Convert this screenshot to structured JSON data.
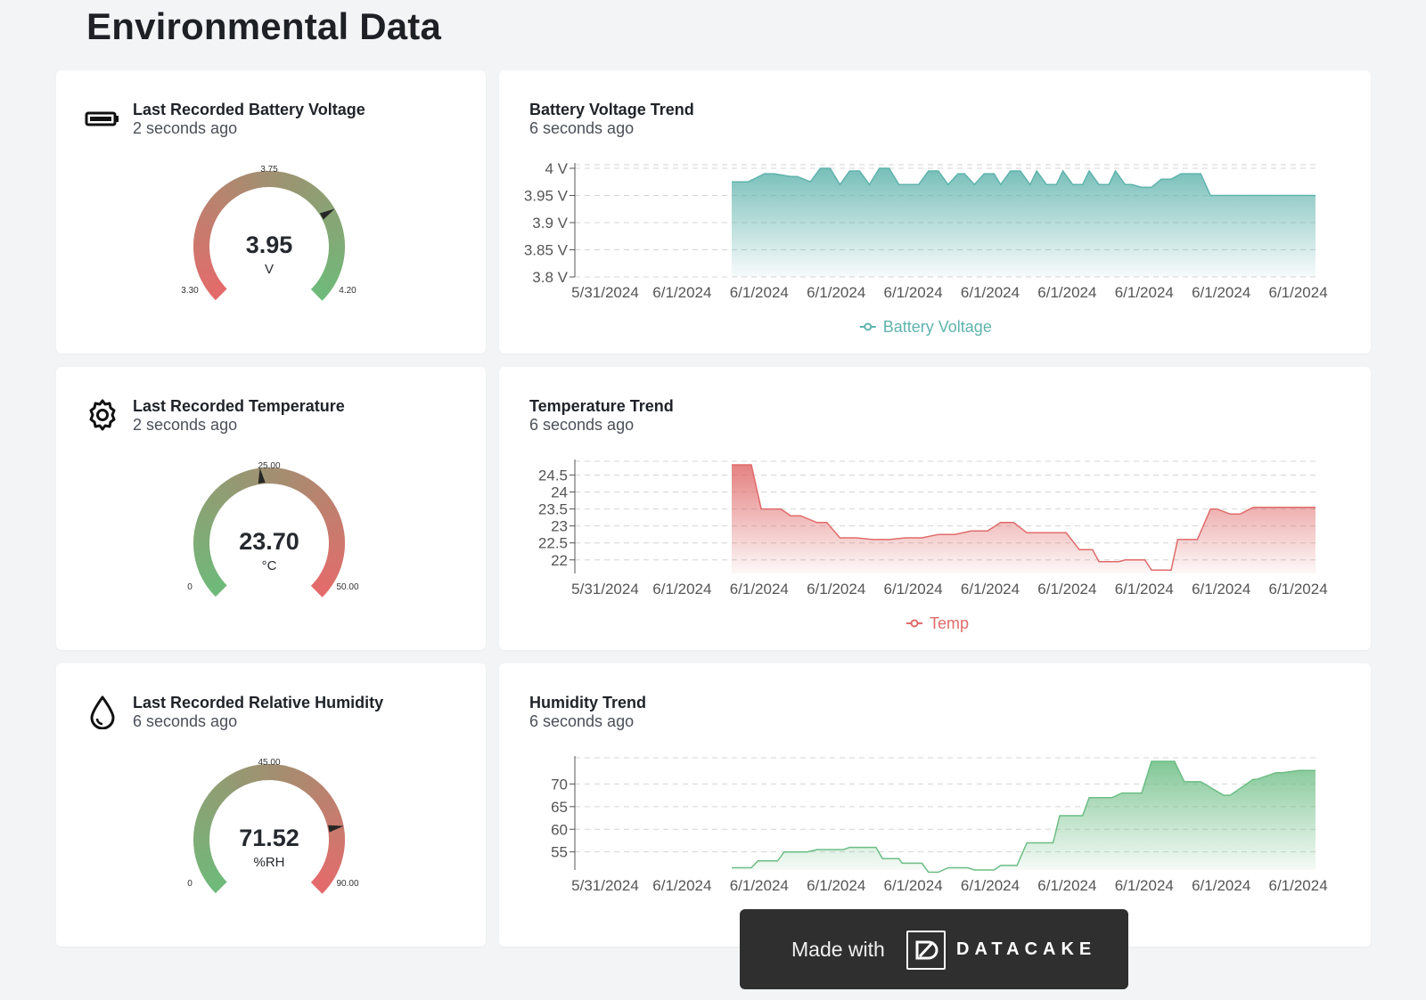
{
  "page": {
    "title": "Environmental Data"
  },
  "kpis": [
    {
      "title": "Last Recorded Battery Voltage",
      "updated": "2 seconds ago",
      "icon": "battery-icon",
      "value": "3.95",
      "value_num": 3.95,
      "unit": "V",
      "min": "3.30",
      "mid": "3.75",
      "max": "4.20",
      "min_num": 3.3,
      "max_num": 4.2,
      "direction": "red-to-green"
    },
    {
      "title": "Last Recorded Temperature",
      "updated": "2 seconds ago",
      "icon": "gear-icon",
      "value": "23.70",
      "value_num": 23.7,
      "unit": "°C",
      "min": "0",
      "mid": "25.00",
      "max": "50.00",
      "min_num": 0,
      "max_num": 50,
      "direction": "green-to-red"
    },
    {
      "title": "Last Recorded Relative Humidity",
      "updated": "6 seconds ago",
      "icon": "water-drop-icon",
      "value": "71.52",
      "value_num": 71.52,
      "unit": "%RH",
      "min": "0",
      "mid": "45.00",
      "max": "90.00",
      "min_num": 0,
      "max_num": 90,
      "direction": "green-to-red"
    }
  ],
  "trends": [
    {
      "title": "Battery Voltage Trend",
      "updated": "6 seconds ago",
      "legend": "Battery Voltage",
      "color": "#5fb3ad"
    },
    {
      "title": "Temperature Trend",
      "updated": "6 seconds ago",
      "legend": "Temp",
      "color": "#e06b6b"
    },
    {
      "title": "Humidity Trend",
      "updated": "6 seconds ago",
      "legend": "",
      "color": "#6cbd84"
    }
  ],
  "chart_data": [
    {
      "type": "area",
      "title": "Battery Voltage Trend",
      "x_tick_labels": [
        "5/31/2024",
        "6/1/2024",
        "6/1/2024",
        "6/1/2024",
        "6/1/2024",
        "6/1/2024",
        "6/1/2024",
        "6/1/2024",
        "6/1/2024",
        "6/1/2024"
      ],
      "y_tick_labels": [
        "4 V",
        "3.95 V",
        "3.9 V",
        "3.85 V",
        "3.8 V"
      ],
      "ylim": [
        3.8,
        4.0
      ],
      "grid": true,
      "legend_position": "bottom-center",
      "series": [
        {
          "name": "Battery Voltage",
          "x": [
            0.11,
            0.135,
            0.16,
            0.175,
            0.2,
            0.21,
            0.23,
            0.245,
            0.26,
            0.275,
            0.29,
            0.305,
            0.32,
            0.335,
            0.35,
            0.365,
            0.38,
            0.395,
            0.41,
            0.425,
            0.44,
            0.455,
            0.465,
            0.48,
            0.495,
            0.51,
            0.52,
            0.535,
            0.55,
            0.565,
            0.575,
            0.59,
            0.605,
            0.615,
            0.63,
            0.645,
            0.655,
            0.67,
            0.685,
            0.695,
            0.71,
            0.72,
            0.735,
            0.75,
            0.765,
            0.78,
            0.795,
            0.805,
            0.825,
            0.84,
            0.855,
            0.87,
            0.9,
            0.95,
            1.0
          ],
          "y": [
            3.975,
            3.975,
            3.99,
            3.99,
            3.985,
            3.985,
            3.975,
            4.0,
            4.0,
            3.97,
            3.995,
            3.995,
            3.97,
            4.0,
            4.0,
            3.97,
            3.97,
            3.97,
            3.995,
            3.995,
            3.97,
            3.99,
            3.99,
            3.97,
            3.99,
            3.99,
            3.97,
            3.995,
            3.995,
            3.97,
            3.995,
            3.97,
            3.97,
            3.995,
            3.97,
            3.97,
            3.995,
            3.97,
            3.97,
            3.995,
            3.97,
            3.97,
            3.965,
            3.965,
            3.98,
            3.98,
            3.99,
            3.99,
            3.99,
            3.95,
            3.95,
            3.95,
            3.95,
            3.95,
            3.95
          ]
        }
      ]
    },
    {
      "type": "area",
      "title": "Temperature Trend",
      "x_tick_labels": [
        "5/31/2024",
        "6/1/2024",
        "6/1/2024",
        "6/1/2024",
        "6/1/2024",
        "6/1/2024",
        "6/1/2024",
        "6/1/2024",
        "6/1/2024",
        "6/1/2024"
      ],
      "y_tick_labels": [
        "24.5",
        "24",
        "23.5",
        "23",
        "22.5",
        "22"
      ],
      "ylim": [
        21.6,
        24.8
      ],
      "grid": true,
      "legend_position": "bottom-center",
      "series": [
        {
          "name": "Temp",
          "x": [
            0.11,
            0.14,
            0.155,
            0.185,
            0.2,
            0.215,
            0.24,
            0.255,
            0.275,
            0.3,
            0.325,
            0.35,
            0.375,
            0.4,
            0.425,
            0.45,
            0.475,
            0.5,
            0.52,
            0.54,
            0.56,
            0.58,
            0.6,
            0.62,
            0.64,
            0.66,
            0.67,
            0.7,
            0.71,
            0.74,
            0.75,
            0.78,
            0.79,
            0.82,
            0.84,
            0.85,
            0.87,
            0.885,
            0.905,
            0.925,
            0.95,
            1.0
          ],
          "y": [
            24.8,
            24.8,
            23.5,
            23.5,
            23.3,
            23.3,
            23.1,
            23.1,
            22.65,
            22.65,
            22.6,
            22.6,
            22.65,
            22.65,
            22.75,
            22.75,
            22.85,
            22.85,
            23.1,
            23.1,
            22.8,
            22.8,
            22.8,
            22.8,
            22.3,
            22.3,
            21.95,
            21.95,
            22.0,
            22.0,
            21.7,
            21.7,
            22.6,
            22.6,
            23.5,
            23.5,
            23.35,
            23.35,
            23.55,
            23.55,
            23.55,
            23.55
          ]
        }
      ]
    },
    {
      "type": "area",
      "title": "Humidity Trend",
      "x_tick_labels": [
        "5/31/2024",
        "6/1/2024",
        "6/1/2024",
        "6/1/2024",
        "6/1/2024",
        "6/1/2024",
        "6/1/2024",
        "6/1/2024",
        "6/1/2024",
        "6/1/2024"
      ],
      "y_tick_labels": [
        "70",
        "65",
        "60",
        "55"
      ],
      "ylim": [
        51,
        75
      ],
      "grid": true,
      "series": [
        {
          "x": [
            0.11,
            0.14,
            0.15,
            0.18,
            0.19,
            0.225,
            0.24,
            0.28,
            0.29,
            0.33,
            0.34,
            0.365,
            0.37,
            0.4,
            0.41,
            0.425,
            0.44,
            0.47,
            0.48,
            0.51,
            0.52,
            0.545,
            0.56,
            0.6,
            0.61,
            0.645,
            0.655,
            0.69,
            0.705,
            0.735,
            0.75,
            0.78,
            0.785,
            0.8,
            0.815,
            0.825,
            0.86,
            0.87,
            0.905,
            0.91,
            0.94,
            0.95,
            0.975,
            0.98,
            1.0
          ],
          "y": [
            51.5,
            51.5,
            53,
            53,
            55,
            55,
            55.5,
            55.5,
            56,
            56,
            53.5,
            53.5,
            52.5,
            52.5,
            50.5,
            50.5,
            51.5,
            51.5,
            51.0,
            51.0,
            52,
            52,
            57,
            57,
            63,
            63,
            67,
            67,
            68,
            68,
            75,
            75,
            75,
            70.5,
            70.5,
            70.5,
            67.5,
            67.5,
            71,
            71,
            72.5,
            72.5,
            73,
            73,
            73
          ]
        }
      ]
    }
  ],
  "badge": {
    "made_with": "Made with",
    "brand": "DATACAKE"
  }
}
